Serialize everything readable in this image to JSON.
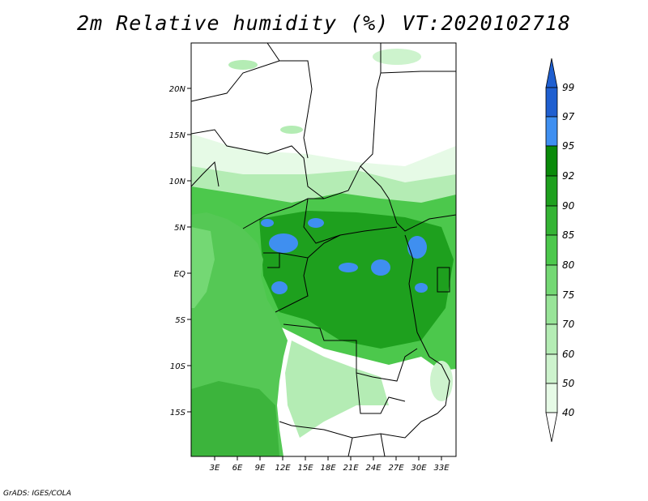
{
  "title": "2m Relative humidity (%) VT:2020102718",
  "credit": "GrADS: IGES/COLA",
  "map": {
    "lat_labels": [
      "20N",
      "15N",
      "10N",
      "5N",
      "EQ",
      "5S",
      "10S",
      "15S"
    ],
    "lon_labels": [
      "3E",
      "6E",
      "9E",
      "12E",
      "15E",
      "18E",
      "21E",
      "24E",
      "27E",
      "30E",
      "33E"
    ]
  },
  "colorbar": {
    "levels": [
      "99",
      "97",
      "95",
      "92",
      "90",
      "85",
      "80",
      "75",
      "70",
      "60",
      "50",
      "40"
    ],
    "colors": [
      "#1f5fd0",
      "#3f8ff0",
      "#0a8a0a",
      "#1ea01e",
      "#34b434",
      "#4cc84c",
      "#74d874",
      "#98e498",
      "#b4ecb4",
      "#cdf3cd",
      "#e6fae6",
      "#ffffff"
    ]
  },
  "field_colors": {
    "ocean": "#55c855",
    "ocean_deep": "#3cb43c",
    "land_dry": "#ffffff",
    "land_light": "#e6fae6",
    "land_mid": "#98e498",
    "land_wet": "#34b434",
    "land_very_wet": "#1ea01e",
    "saturated": "#3f8ff0"
  }
}
